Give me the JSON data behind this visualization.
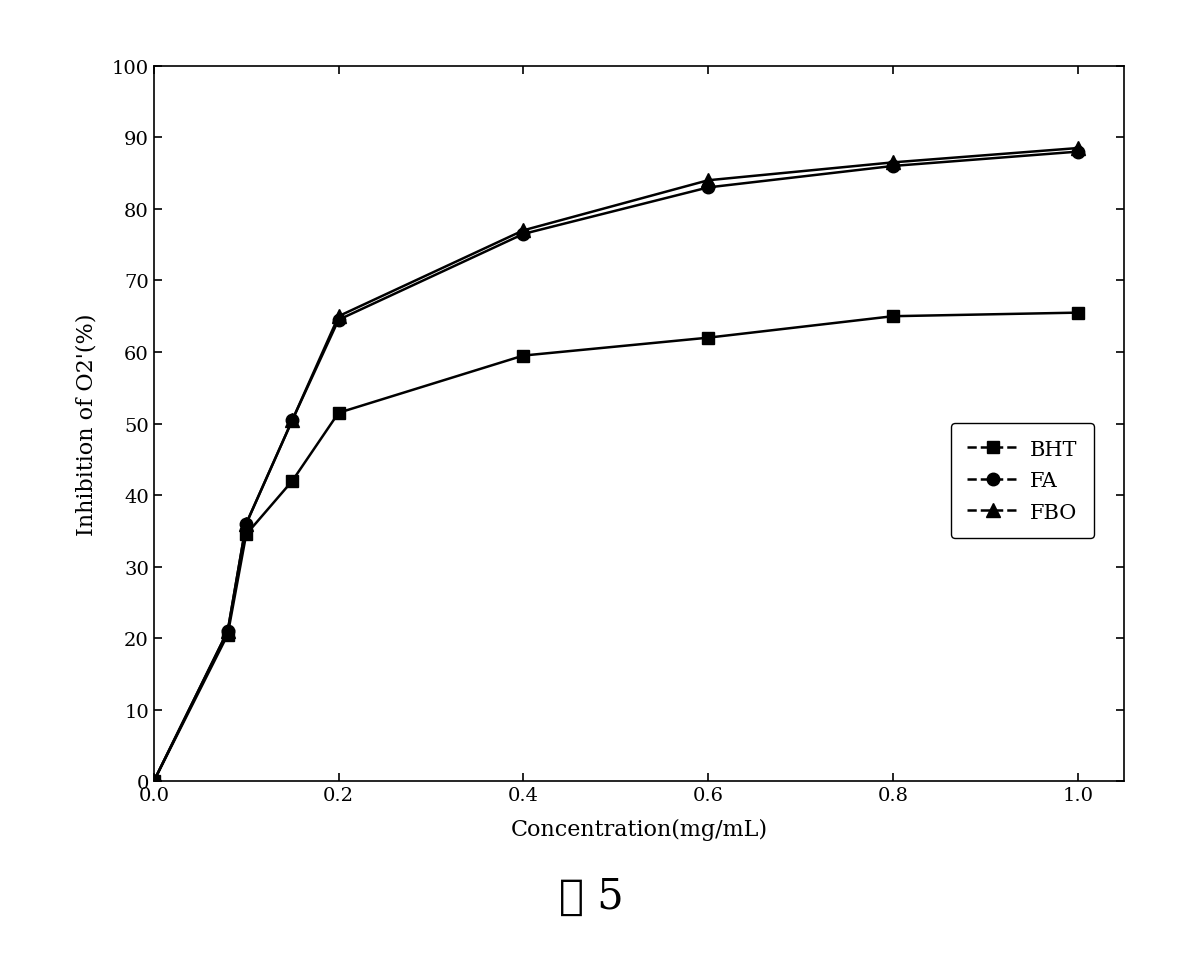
{
  "x": [
    0.0,
    0.08,
    0.1,
    0.15,
    0.2,
    0.4,
    0.6,
    0.8,
    1.0
  ],
  "BHT_y": [
    0.0,
    20.5,
    34.5,
    42.0,
    51.5,
    59.5,
    62.0,
    65.0,
    65.5
  ],
  "FA_y": [
    0.0,
    21.0,
    36.0,
    50.5,
    64.5,
    76.5,
    83.0,
    86.0,
    88.0
  ],
  "FBO_y": [
    0.0,
    21.0,
    36.0,
    50.5,
    65.0,
    77.0,
    84.0,
    86.5,
    88.5
  ],
  "xlabel": "Concentration(mg/mL)",
  "ylabel": "Inhibition of O2'(%)",
  "xlim": [
    0.0,
    1.05
  ],
  "ylim": [
    0,
    100
  ],
  "xticks": [
    0.0,
    0.2,
    0.4,
    0.6,
    0.8,
    1.0
  ],
  "yticks": [
    0,
    10,
    20,
    30,
    40,
    50,
    60,
    70,
    80,
    90,
    100
  ],
  "legend_labels": [
    "BHT",
    "FA",
    "FBO"
  ],
  "line_color": "#000000",
  "caption": "图 5",
  "caption_fontsize": 30
}
